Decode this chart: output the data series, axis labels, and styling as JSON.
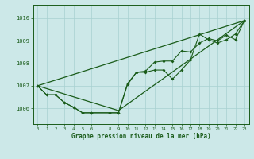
{
  "title": "Graphe pression niveau de la mer (hPa)",
  "bg_color": "#cce8e8",
  "grid_color": "#a8d0d0",
  "line_color": "#1a5c1a",
  "ylim": [
    1005.3,
    1010.6
  ],
  "yticks": [
    1006,
    1007,
    1008,
    1009,
    1010
  ],
  "hours": [
    0,
    1,
    2,
    3,
    4,
    5,
    6,
    8,
    9,
    10,
    11,
    12,
    13,
    14,
    15,
    16,
    17,
    18,
    19,
    20,
    21,
    22,
    23
  ],
  "series1": [
    1007.0,
    1006.6,
    1006.6,
    1006.25,
    1006.05,
    1005.8,
    1005.8,
    1005.8,
    1005.8,
    1007.05,
    1007.6,
    1007.6,
    1007.7,
    1007.7,
    1007.3,
    1007.7,
    1008.15,
    1009.3,
    1009.05,
    1008.9,
    1009.05,
    1009.3,
    1009.9
  ],
  "series2": [
    1007.0,
    1006.6,
    1006.6,
    1006.25,
    1006.05,
    1005.8,
    1005.8,
    1005.8,
    1005.8,
    1007.1,
    1007.6,
    1007.65,
    1008.05,
    1008.1,
    1008.1,
    1008.55,
    1008.5,
    1008.9,
    1009.1,
    1009.0,
    1009.25,
    1009.05,
    1009.9
  ],
  "trend1_x": [
    0,
    23
  ],
  "trend1_y": [
    1007.0,
    1009.9
  ],
  "trend2_x": [
    0,
    9,
    23
  ],
  "trend2_y": [
    1007.0,
    1005.9,
    1009.9
  ],
  "xlim": [
    -0.5,
    23.5
  ],
  "tick_labels": [
    "0",
    "1",
    "2",
    "3",
    "4",
    "5",
    "6",
    "8",
    "9",
    "10",
    "11",
    "12",
    "13",
    "14",
    "15",
    "16",
    "17",
    "18",
    "19",
    "20",
    "21",
    "22",
    "23"
  ]
}
